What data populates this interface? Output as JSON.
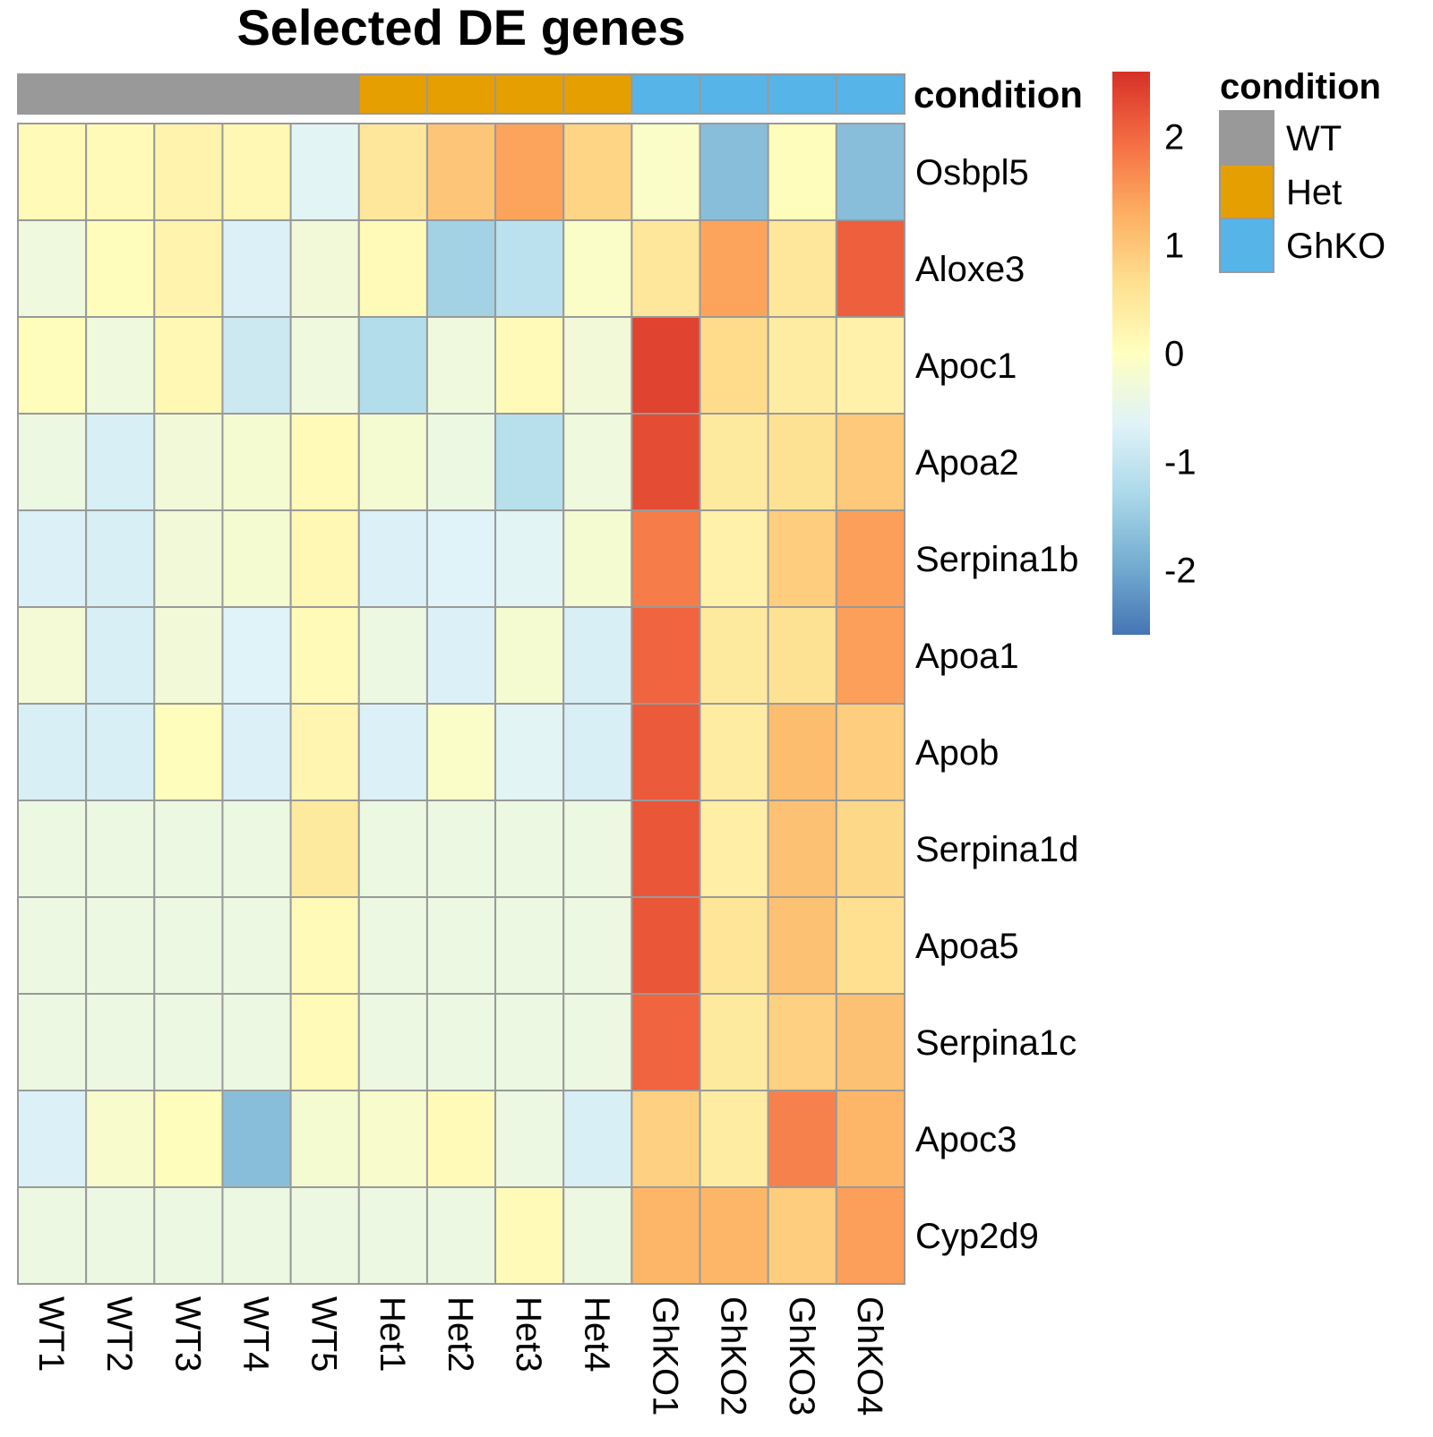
{
  "chart_data": {
    "type": "heatmap",
    "title": "Selected DE genes",
    "rows": [
      "Osbpl5",
      "Aloxe3",
      "Apoc1",
      "Apoa2",
      "Serpina1b",
      "Apoa1",
      "Apob",
      "Serpina1d",
      "Apoa5",
      "Serpina1c",
      "Apoc3",
      "Cyp2d9"
    ],
    "columns": [
      "WT1",
      "WT2",
      "WT3",
      "WT4",
      "WT5",
      "Het1",
      "Het2",
      "Het3",
      "Het4",
      "GhKO1",
      "GhKO2",
      "GhKO3",
      "GhKO4"
    ],
    "values": [
      [
        0.1,
        0.1,
        0.25,
        0.15,
        -0.6,
        0.5,
        1.0,
        1.4,
        0.8,
        -0.1,
        -1.7,
        0.05,
        -1.7
      ],
      [
        -0.35,
        0.05,
        0.25,
        -0.7,
        -0.3,
        0.1,
        -1.4,
        -1.1,
        -0.1,
        0.5,
        1.4,
        0.5,
        2.1
      ],
      [
        0.05,
        -0.35,
        0.15,
        -0.9,
        -0.35,
        -1.2,
        -0.35,
        0.1,
        -0.3,
        2.4,
        0.7,
        0.4,
        0.3
      ],
      [
        -0.4,
        -0.75,
        -0.3,
        -0.2,
        0.1,
        -0.2,
        -0.4,
        -1.15,
        -0.35,
        2.3,
        0.45,
        0.6,
        0.95
      ],
      [
        -0.7,
        -0.75,
        -0.3,
        -0.2,
        0.15,
        -0.7,
        -0.65,
        -0.6,
        -0.2,
        1.8,
        0.3,
        0.9,
        1.45
      ],
      [
        -0.25,
        -0.75,
        -0.3,
        -0.65,
        0.1,
        -0.4,
        -0.7,
        -0.2,
        -0.75,
        2.05,
        0.45,
        0.6,
        1.45
      ],
      [
        -0.75,
        -0.75,
        0.05,
        -0.7,
        0.2,
        -0.7,
        -0.1,
        -0.6,
        -0.75,
        2.15,
        0.4,
        1.1,
        0.9
      ],
      [
        -0.4,
        -0.4,
        -0.4,
        -0.4,
        0.45,
        -0.4,
        -0.4,
        -0.4,
        -0.4,
        2.2,
        0.35,
        1.05,
        0.75
      ],
      [
        -0.4,
        -0.4,
        -0.4,
        -0.4,
        0.1,
        -0.4,
        -0.4,
        -0.4,
        -0.4,
        2.2,
        0.55,
        1.05,
        0.65
      ],
      [
        -0.4,
        -0.4,
        -0.4,
        -0.4,
        0.1,
        -0.4,
        -0.4,
        -0.4,
        -0.4,
        2.05,
        0.45,
        0.85,
        1.05
      ],
      [
        -0.7,
        -0.15,
        0.05,
        -1.7,
        -0.2,
        -0.15,
        0.1,
        -0.4,
        -0.75,
        0.85,
        0.4,
        1.75,
        1.2
      ],
      [
        -0.4,
        -0.4,
        -0.4,
        -0.4,
        -0.4,
        -0.4,
        -0.4,
        0.1,
        -0.4,
        1.2,
        1.2,
        0.9,
        1.45
      ]
    ],
    "annotation": {
      "name": "condition",
      "values": [
        "WT",
        "WT",
        "WT",
        "WT",
        "WT",
        "Het",
        "Het",
        "Het",
        "Het",
        "GhKO",
        "GhKO",
        "GhKO",
        "GhKO"
      ],
      "levels": [
        {
          "label": "WT",
          "color": "#999999"
        },
        {
          "label": "Het",
          "color": "#E69F00"
        },
        {
          "label": "GhKO",
          "color": "#56B4E9"
        }
      ]
    },
    "color_scale": {
      "min": -2.6,
      "max": 2.6,
      "ticks": [
        2,
        1,
        0,
        -1,
        -2
      ],
      "tick_labels": [
        "2",
        "1",
        "0",
        "-1",
        "-2"
      ],
      "palette": [
        "#4575B4",
        "#74ADD1",
        "#ABD9E9",
        "#E0F3F8",
        "#FFFFBF",
        "#FEE090",
        "#FDAE61",
        "#F46D43",
        "#D73027"
      ]
    },
    "cell_border_color": "#999999",
    "legend_placement": "right"
  }
}
